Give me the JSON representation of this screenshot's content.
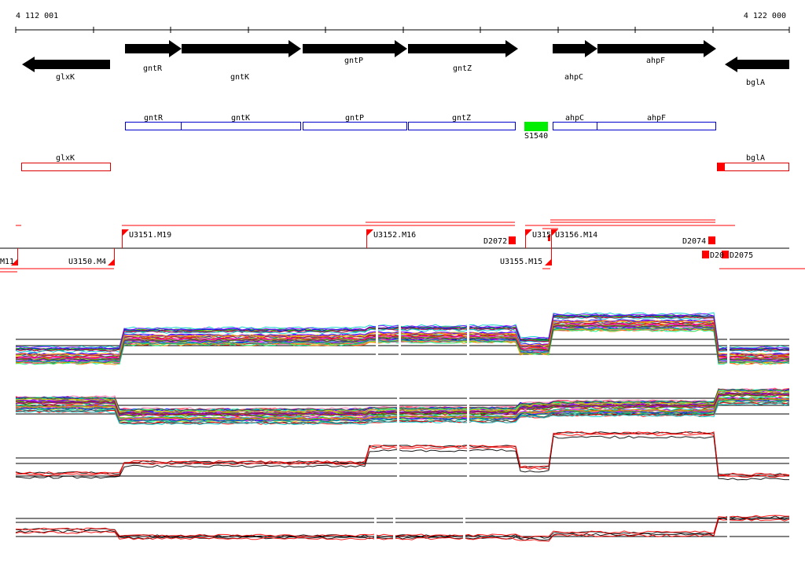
{
  "ruler": {
    "start_label": "4 112 001",
    "end_label": "4 122 000"
  },
  "genes": [
    {
      "name": "glxK",
      "strand": "-"
    },
    {
      "name": "gntR",
      "strand": "+"
    },
    {
      "name": "gntK",
      "strand": "+"
    },
    {
      "name": "gntP",
      "strand": "+"
    },
    {
      "name": "gntZ",
      "strand": "+"
    },
    {
      "name": "ahpC",
      "strand": "+"
    },
    {
      "name": "ahpF",
      "strand": "+"
    },
    {
      "name": "bglA",
      "strand": "-"
    }
  ],
  "operon_boxes_plus": [
    "gntR",
    "gntK",
    "gntP",
    "gntZ",
    "ahpC",
    "ahpF"
  ],
  "misc_feature": {
    "label": "S1540",
    "color": "#00ee00"
  },
  "operon_boxes_minus": [
    "glxK",
    "bglA"
  ],
  "segment_labels": {
    "plus": [
      "U3151.M19",
      "U3152.M16",
      "D2072",
      "U315",
      "D2074"
    ],
    "overlap": "U3156.M14",
    "minus": [
      "U3150.M4",
      "U3155.M15",
      "D20",
      "D2075",
      "M11"
    ]
  },
  "colors": {
    "gene": "#000000",
    "operon_plus": "#0000cc",
    "operon_minus": "#dd0000",
    "segment": "#ff0000"
  }
}
